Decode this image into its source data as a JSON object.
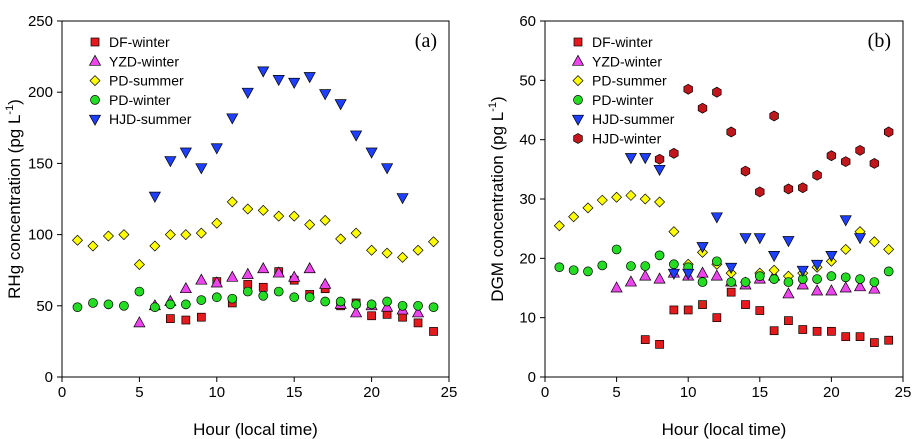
{
  "chart_data": [
    {
      "type": "scatter",
      "annotation": "(a)",
      "xlabel": "Hour (local time)",
      "ylabel": [
        "RHg concentration (pg L",
        "-1",
        ")"
      ],
      "xlim": [
        0,
        25
      ],
      "xticks": [
        0,
        5,
        10,
        15,
        20,
        25
      ],
      "ylim": [
        0,
        250
      ],
      "yticks": [
        0,
        50,
        100,
        150,
        200,
        250
      ],
      "legend": "upper-left",
      "series": [
        {
          "name": "DF-winter",
          "marker": "square",
          "color": "#e41a1c",
          "x": [
            7,
            8,
            9,
            10,
            11,
            12,
            13,
            14,
            15,
            16,
            17,
            18,
            19,
            20,
            21,
            22,
            23,
            24
          ],
          "values": [
            41,
            40,
            42,
            67,
            52,
            65,
            63,
            74,
            68,
            58,
            62,
            50,
            52,
            43,
            44,
            42,
            38,
            32
          ]
        },
        {
          "name": "YZD-winter",
          "marker": "triangle-up",
          "color": "#ee44ee",
          "x": [
            5,
            6,
            7,
            8,
            9,
            10,
            11,
            12,
            13,
            14,
            15,
            16,
            17,
            18,
            19,
            20,
            21,
            22,
            23
          ],
          "values": [
            38,
            50,
            53,
            62,
            68,
            66,
            70,
            72,
            76,
            73,
            70,
            76,
            65,
            51,
            45,
            50,
            49,
            47,
            45
          ]
        },
        {
          "name": "PD-summer",
          "marker": "diamond",
          "color": "#ffff00",
          "x": [
            1,
            2,
            3,
            4,
            5,
            6,
            7,
            8,
            9,
            10,
            11,
            12,
            13,
            14,
            15,
            16,
            17,
            18,
            19,
            20,
            21,
            22,
            23,
            24
          ],
          "values": [
            96,
            92,
            99,
            100,
            79,
            92,
            100,
            100,
            101,
            108,
            123,
            118,
            117,
            113,
            113,
            107,
            110,
            97,
            101,
            89,
            87,
            84,
            89,
            95
          ]
        },
        {
          "name": "PD-winter",
          "marker": "circle",
          "color": "#22dd22",
          "x": [
            1,
            2,
            3,
            4,
            5,
            6,
            7,
            8,
            9,
            10,
            11,
            12,
            13,
            14,
            15,
            16,
            17,
            18,
            19,
            20,
            21,
            22,
            23,
            24
          ],
          "values": [
            49,
            52,
            51,
            50,
            60,
            49,
            51,
            51,
            54,
            56,
            55,
            60,
            57,
            60,
            56,
            56,
            53,
            53,
            51,
            51,
            53,
            50,
            50,
            49
          ]
        },
        {
          "name": "HJD-summer",
          "marker": "triangle-down",
          "color": "#1f3fff",
          "x": [
            6,
            7,
            8,
            9,
            10,
            11,
            12,
            13,
            14,
            15,
            16,
            17,
            18,
            19,
            20,
            21,
            22
          ],
          "values": [
            127,
            152,
            158,
            147,
            161,
            182,
            200,
            215,
            209,
            207,
            211,
            199,
            192,
            170,
            158,
            147,
            126
          ]
        }
      ]
    },
    {
      "type": "scatter",
      "annotation": "(b)",
      "xlabel": "Hour (local time)",
      "ylabel": [
        "DGM concentration (pg L",
        "-1",
        ")"
      ],
      "xlim": [
        0,
        25
      ],
      "xticks": [
        0,
        5,
        10,
        15,
        20,
        25
      ],
      "ylim": [
        0,
        60
      ],
      "yticks": [
        0,
        10,
        20,
        30,
        40,
        50,
        60
      ],
      "legend": "upper-left",
      "series": [
        {
          "name": "DF-winter",
          "marker": "square",
          "color": "#e41a1c",
          "x": [
            7,
            8,
            9,
            10,
            11,
            12,
            13,
            14,
            15,
            16,
            17,
            18,
            19,
            20,
            21,
            22,
            23,
            24
          ],
          "values": [
            6.3,
            5.5,
            11.3,
            11.3,
            12.2,
            10,
            14.3,
            12.2,
            11.2,
            7.8,
            9.5,
            8,
            7.7,
            7.7,
            6.8,
            6.8,
            5.8,
            6.2
          ]
        },
        {
          "name": "YZD-winter",
          "marker": "triangle-up",
          "color": "#ee44ee",
          "x": [
            5,
            6,
            7,
            8,
            9,
            10,
            11,
            12,
            13,
            14,
            15,
            16,
            17,
            18,
            19,
            20,
            21,
            22,
            23
          ],
          "values": [
            15,
            16,
            17,
            16.5,
            17.5,
            17,
            17.5,
            17,
            16,
            15.5,
            16.5,
            17,
            14,
            15.5,
            14.5,
            14.5,
            15,
            15.2,
            14.8
          ]
        },
        {
          "name": "PD-summer",
          "marker": "diamond",
          "color": "#ffff00",
          "x": [
            1,
            2,
            3,
            4,
            5,
            6,
            7,
            8,
            9,
            10,
            11,
            12,
            13,
            14,
            15,
            16,
            17,
            18,
            19,
            20,
            21,
            22,
            23,
            24
          ],
          "values": [
            25.5,
            27,
            28.5,
            29.8,
            30.3,
            30.6,
            30,
            29.5,
            24.5,
            19,
            21,
            19,
            17.5,
            16,
            17.5,
            18,
            17,
            17.5,
            18.5,
            19.5,
            21.5,
            24.5,
            22.8,
            21.5
          ]
        },
        {
          "name": "PD-winter",
          "marker": "circle",
          "color": "#22dd22",
          "x": [
            1,
            2,
            3,
            4,
            5,
            6,
            7,
            8,
            9,
            10,
            11,
            12,
            13,
            14,
            15,
            16,
            17,
            18,
            19,
            20,
            21,
            22,
            23,
            24
          ],
          "values": [
            18.5,
            18,
            17.8,
            18.8,
            21.5,
            18.7,
            18.7,
            20.5,
            19,
            18.5,
            16,
            19.5,
            16,
            16,
            17,
            16.5,
            16,
            16.5,
            16.5,
            17,
            16.8,
            16.5,
            16,
            17.8
          ]
        },
        {
          "name": "HJD-summer",
          "marker": "triangle-down",
          "color": "#1f3fff",
          "x": [
            6,
            7,
            8,
            9,
            10,
            11,
            12,
            13,
            14,
            15,
            16,
            17,
            18,
            19,
            20,
            21,
            22
          ],
          "values": [
            37,
            37,
            35,
            17.5,
            17.5,
            22,
            27,
            18.5,
            23.5,
            23.5,
            20.5,
            23,
            18,
            19,
            20.5,
            26.5,
            23.5
          ]
        },
        {
          "name": "HJD-winter",
          "marker": "hexagon",
          "color": "#c0161c",
          "x": [
            8,
            9,
            10,
            11,
            12,
            13,
            14,
            15,
            16,
            17,
            18,
            19,
            20,
            21,
            22,
            23,
            24
          ],
          "values": [
            36.7,
            37.7,
            48.5,
            45.3,
            48,
            41.3,
            34.7,
            31.2,
            44,
            31.7,
            31.9,
            34,
            37.3,
            36.3,
            38.2,
            36,
            41.3
          ]
        }
      ]
    }
  ]
}
